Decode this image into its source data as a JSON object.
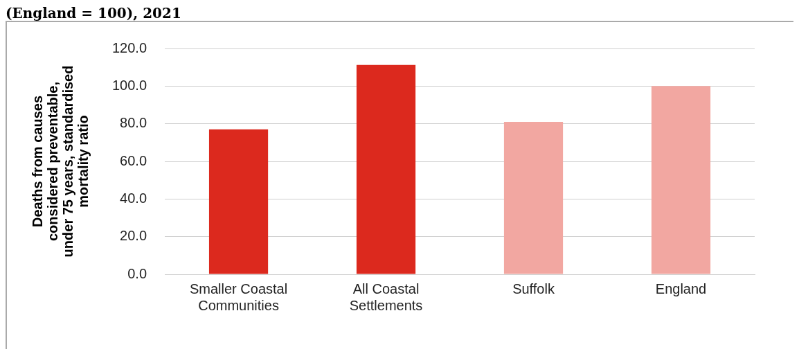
{
  "chart_data": {
    "type": "bar",
    "title": "(England = 100), 2021",
    "ylabel": "Deaths from causes considered preventable, under 75 years, standardised mortality ratio",
    "categories": [
      "Smaller Coastal Communities",
      "All Coastal Settlements",
      "Suffolk",
      "England"
    ],
    "values": [
      77.0,
      111.3,
      81.0,
      100.0
    ],
    "colors": [
      "#dc291e",
      "#dc291e",
      "#f2a7a1",
      "#f2a7a1"
    ],
    "ylim": [
      0,
      120
    ],
    "yticks": [
      {
        "value": 0,
        "label": "0.0"
      },
      {
        "value": 20,
        "label": "20.0"
      },
      {
        "value": 40,
        "label": "40.0"
      },
      {
        "value": 60,
        "label": "60.0"
      },
      {
        "value": 80,
        "label": "80.0"
      },
      {
        "value": 100,
        "label": "100.0"
      },
      {
        "value": 120,
        "label": "120.0"
      }
    ],
    "grid": "y",
    "legend": false
  }
}
